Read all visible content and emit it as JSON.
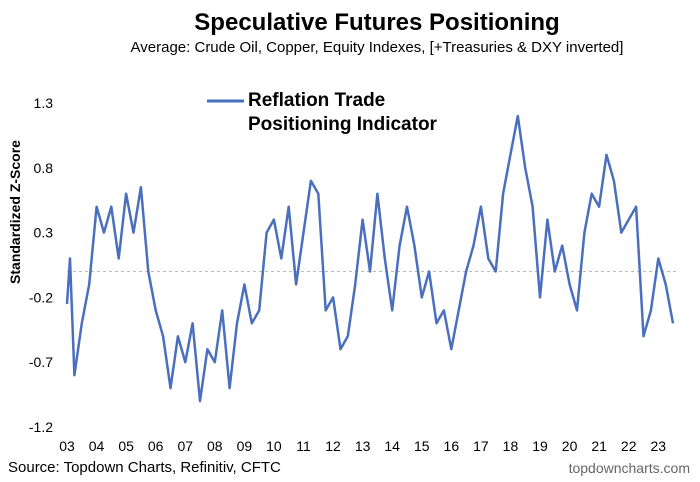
{
  "chart_data": {
    "type": "line",
    "title": "Speculative Futures Positioning",
    "subtitle": "Average: Crude Oil, Copper, Equity Indexes, [+Treasuries & DXY inverted]",
    "y_label": "Standardized Z-Score",
    "source": "Source: Topdown Charts, Refinitiv, CFTC",
    "watermark": "topdowncharts.com",
    "zero_line": true,
    "xlim": [
      2003,
      2023.6
    ],
    "ylim": [
      -1.2,
      1.3
    ],
    "yticks": [
      -1.2,
      -0.7,
      -0.2,
      0.3,
      0.8,
      1.3
    ],
    "xticks": [
      {
        "value": 2003,
        "label": "03"
      },
      {
        "value": 2004,
        "label": "04"
      },
      {
        "value": 2005,
        "label": "05"
      },
      {
        "value": 2006,
        "label": "06"
      },
      {
        "value": 2007,
        "label": "07"
      },
      {
        "value": 2008,
        "label": "08"
      },
      {
        "value": 2009,
        "label": "09"
      },
      {
        "value": 2010,
        "label": "10"
      },
      {
        "value": 2011,
        "label": "11"
      },
      {
        "value": 2012,
        "label": "12"
      },
      {
        "value": 2013,
        "label": "13"
      },
      {
        "value": 2014,
        "label": "14"
      },
      {
        "value": 2015,
        "label": "15"
      },
      {
        "value": 2016,
        "label": "16"
      },
      {
        "value": 2017,
        "label": "17"
      },
      {
        "value": 2018,
        "label": "18"
      },
      {
        "value": 2019,
        "label": "19"
      },
      {
        "value": 2020,
        "label": "20"
      },
      {
        "value": 2021,
        "label": "21"
      },
      {
        "value": 2022,
        "label": "22"
      },
      {
        "value": 2023,
        "label": "23"
      }
    ],
    "x": [
      2003.0,
      2003.1,
      2003.25,
      2003.5,
      2003.75,
      2004.0,
      2004.25,
      2004.5,
      2004.75,
      2005.0,
      2005.25,
      2005.5,
      2005.75,
      2006.0,
      2006.25,
      2006.5,
      2006.75,
      2007.0,
      2007.25,
      2007.5,
      2007.75,
      2008.0,
      2008.25,
      2008.5,
      2008.75,
      2009.0,
      2009.25,
      2009.5,
      2009.75,
      2010.0,
      2010.25,
      2010.5,
      2010.75,
      2011.0,
      2011.25,
      2011.5,
      2011.75,
      2012.0,
      2012.25,
      2012.5,
      2012.75,
      2013.0,
      2013.25,
      2013.5,
      2013.75,
      2014.0,
      2014.25,
      2014.5,
      2014.75,
      2015.0,
      2015.25,
      2015.5,
      2015.75,
      2016.0,
      2016.25,
      2016.5,
      2016.75,
      2017.0,
      2017.25,
      2017.5,
      2017.75,
      2018.0,
      2018.25,
      2018.5,
      2018.75,
      2019.0,
      2019.25,
      2019.5,
      2019.75,
      2020.0,
      2020.25,
      2020.5,
      2020.75,
      2021.0,
      2021.25,
      2021.5,
      2021.75,
      2022.0,
      2022.25,
      2022.5,
      2022.75,
      2023.0,
      2023.25,
      2023.5
    ],
    "series": [
      {
        "name": "Reflation Trade Positioning Indicator",
        "color": "#4a6fbf",
        "values": [
          -0.25,
          0.1,
          -0.8,
          -0.4,
          -0.1,
          0.5,
          0.3,
          0.5,
          0.1,
          0.6,
          0.3,
          0.65,
          0.0,
          -0.3,
          -0.5,
          -0.9,
          -0.5,
          -0.7,
          -0.4,
          -1.0,
          -0.6,
          -0.7,
          -0.3,
          -0.9,
          -0.4,
          -0.1,
          -0.4,
          -0.3,
          0.3,
          0.4,
          0.1,
          0.5,
          -0.1,
          0.3,
          0.7,
          0.6,
          -0.3,
          -0.2,
          -0.6,
          -0.5,
          -0.1,
          0.4,
          0.0,
          0.6,
          0.1,
          -0.3,
          0.2,
          0.5,
          0.2,
          -0.2,
          0.0,
          -0.4,
          -0.3,
          -0.6,
          -0.3,
          0.0,
          0.2,
          0.5,
          0.1,
          0.0,
          0.6,
          0.9,
          1.2,
          0.8,
          0.5,
          -0.2,
          0.4,
          0.0,
          0.2,
          -0.1,
          -0.3,
          0.3,
          0.6,
          0.5,
          0.9,
          0.7,
          0.3,
          0.4,
          0.5,
          -0.5,
          -0.3,
          0.1,
          -0.1,
          -0.4
        ]
      }
    ]
  }
}
